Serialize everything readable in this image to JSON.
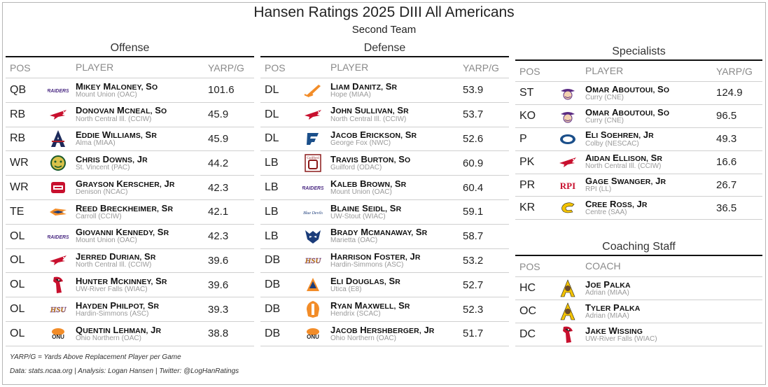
{
  "header": {
    "title": "Hansen Ratings 2025 DIII All Americans",
    "subtitle": "Second Team"
  },
  "offense": {
    "title": "Offense",
    "col_pos": "POS",
    "col_player": "PLAYER",
    "col_val": "YARP/G",
    "rows": [
      {
        "pos": "QB",
        "name": "Mikey Maloney, So",
        "school": "Mount Union (OAC)",
        "val": "101.6",
        "logo": "raiders-logo"
      },
      {
        "pos": "RB",
        "name": "Donovan McNeal, So",
        "school": "North Central Ill. (CCIW)",
        "val": "45.9",
        "logo": "cardinal-logo"
      },
      {
        "pos": "RB",
        "name": "Eddie Williams, Sr",
        "school": "Alma (MIAA)",
        "val": "45.9",
        "logo": "alma-a-logo"
      },
      {
        "pos": "WR",
        "name": "Chris Downs, Jr",
        "school": "St. Vincent (PAC)",
        "val": "44.2",
        "logo": "bearcat-logo"
      },
      {
        "pos": "WR",
        "name": "Grayson Kerscher, Jr",
        "school": "Denison (NCAC)",
        "val": "42.3",
        "logo": "denison-logo"
      },
      {
        "pos": "TE",
        "name": "Reed Breckheimer, Sr",
        "school": "Carroll (CCIW)",
        "val": "42.1",
        "logo": "pioneer-logo"
      },
      {
        "pos": "OL",
        "name": "Giovanni Kennedy, Sr",
        "school": "Mount Union (OAC)",
        "val": "42.3",
        "logo": "raiders-logo"
      },
      {
        "pos": "OL",
        "name": "Jerred Durian, Sr",
        "school": "North Central Ill. (CCIW)",
        "val": "39.6",
        "logo": "cardinal-logo"
      },
      {
        "pos": "OL",
        "name": "Hunter McKinney, Sr",
        "school": "UW-River Falls (WIAC)",
        "val": "39.6",
        "logo": "falcon-logo"
      },
      {
        "pos": "OL",
        "name": "Hayden Philpot, Sr",
        "school": "Hardin-Simmons (ASC)",
        "val": "39.3",
        "logo": "hsu-logo"
      },
      {
        "pos": "OL",
        "name": "Quentin Lehman, Jr",
        "school": "Ohio Northern (OAC)",
        "val": "38.8",
        "logo": "onu-logo"
      }
    ]
  },
  "defense": {
    "title": "Defense",
    "col_pos": "POS",
    "col_player": "PLAYER",
    "col_val": "YARP/G",
    "rows": [
      {
        "pos": "DL",
        "name": "Liam Danitz, Sr",
        "school": "Hope (MIAA)",
        "val": "53.9",
        "logo": "flying-dutchman-logo"
      },
      {
        "pos": "DL",
        "name": "John Sullivan, Sr",
        "school": "North Central Ill. (CCIW)",
        "val": "53.7",
        "logo": "cardinal-logo"
      },
      {
        "pos": "DL",
        "name": "Jacob Erickson, Sr",
        "school": "George Fox (NWC)",
        "val": "52.6",
        "logo": "gf-logo"
      },
      {
        "pos": "LB",
        "name": "Travis Burton, So",
        "school": "Guilford (ODAC)",
        "val": "60.9",
        "logo": "guilford-logo"
      },
      {
        "pos": "LB",
        "name": "Kaleb Brown, Sr",
        "school": "Mount Union (OAC)",
        "val": "60.4",
        "logo": "raiders-logo"
      },
      {
        "pos": "LB",
        "name": "Blaine Seidl, Sr",
        "school": "UW-Stout (WIAC)",
        "val": "59.1",
        "logo": "stout-logo"
      },
      {
        "pos": "LB",
        "name": "Brady McManaway, Sr",
        "school": "Marietta (OAC)",
        "val": "58.7",
        "logo": "pioneer-mask-logo"
      },
      {
        "pos": "DB",
        "name": "Harrison Foster, Jr",
        "school": "Hardin-Simmons (ASC)",
        "val": "53.2",
        "logo": "hsu-logo"
      },
      {
        "pos": "DB",
        "name": "Eli Douglas, Sr",
        "school": "Utica (E8)",
        "val": "52.7",
        "logo": "utica-logo"
      },
      {
        "pos": "DB",
        "name": "Ryan Maxwell, Sr",
        "school": "Hendrix (SCAC)",
        "val": "52.3",
        "logo": "warrior-logo"
      },
      {
        "pos": "DB",
        "name": "Jacob Hershberger, Jr",
        "school": "Ohio Northern (OAC)",
        "val": "51.7",
        "logo": "onu-logo"
      }
    ]
  },
  "specialists": {
    "title": "Specialists",
    "col_pos": "POS",
    "col_player": "PLAYER",
    "col_val": "YARP/G",
    "rows": [
      {
        "pos": "ST",
        "name": "Omar Aboutoui, So",
        "school": "Curry (CNE)",
        "val": "124.9",
        "logo": "curry-colonel-logo"
      },
      {
        "pos": "KO",
        "name": "Omar Aboutoui, So",
        "school": "Curry (CNE)",
        "val": "96.5",
        "logo": "curry-colonel-logo"
      },
      {
        "pos": "P",
        "name": "Eli Soehren, Jr",
        "school": "Colby (NESCAC)",
        "val": "49.3",
        "logo": "mule-logo"
      },
      {
        "pos": "PK",
        "name": "Aidan Ellison, Sr",
        "school": "North Central Ill. (CCIW)",
        "val": "16.6",
        "logo": "cardinal-logo"
      },
      {
        "pos": "PR",
        "name": "Gage Swanger, Jr",
        "school": "RPI (LL)",
        "val": "26.7",
        "logo": "rpi-logo"
      },
      {
        "pos": "KR",
        "name": "Cree Ross, Jr",
        "school": "Centre (SAA)",
        "val": "36.5",
        "logo": "centre-c-logo"
      }
    ]
  },
  "coaching": {
    "title": "Coaching Staff",
    "col_pos": "POS",
    "col_coach": "COACH",
    "rows": [
      {
        "pos": "HC",
        "name": "Joe Palka",
        "school": "Adrian (MIAA)",
        "logo": "bulldog-logo"
      },
      {
        "pos": "OC",
        "name": "Tyler Palka",
        "school": "Adrian (MIAA)",
        "logo": "bulldog-logo"
      },
      {
        "pos": "DC",
        "name": "Jake Wissing",
        "school": "UW-River Falls (WIAC)",
        "logo": "falcon-logo"
      }
    ]
  },
  "logo_text": {
    "raiders": "RAIDERS",
    "hsu": "HSU",
    "rpi": "RPI",
    "onu": "ONU",
    "guilford": "Guilford",
    "stout": "Blue Devils"
  },
  "footer": {
    "note": "YARP/G = Yards Above Replacement Player per Game",
    "credits": "Data: stats.ncaa.org | Analysis: Logan Hansen | Twitter: @LogHanRatings"
  },
  "colors": {
    "rule": "#111111",
    "divider": "#cfcfcf",
    "header_text": "#8a8a8a",
    "school_text": "#9a9a9a",
    "raiders_purple": "#4b2a83",
    "cardinal_red": "#c8102e",
    "hsu_gold": "#f2a900"
  }
}
